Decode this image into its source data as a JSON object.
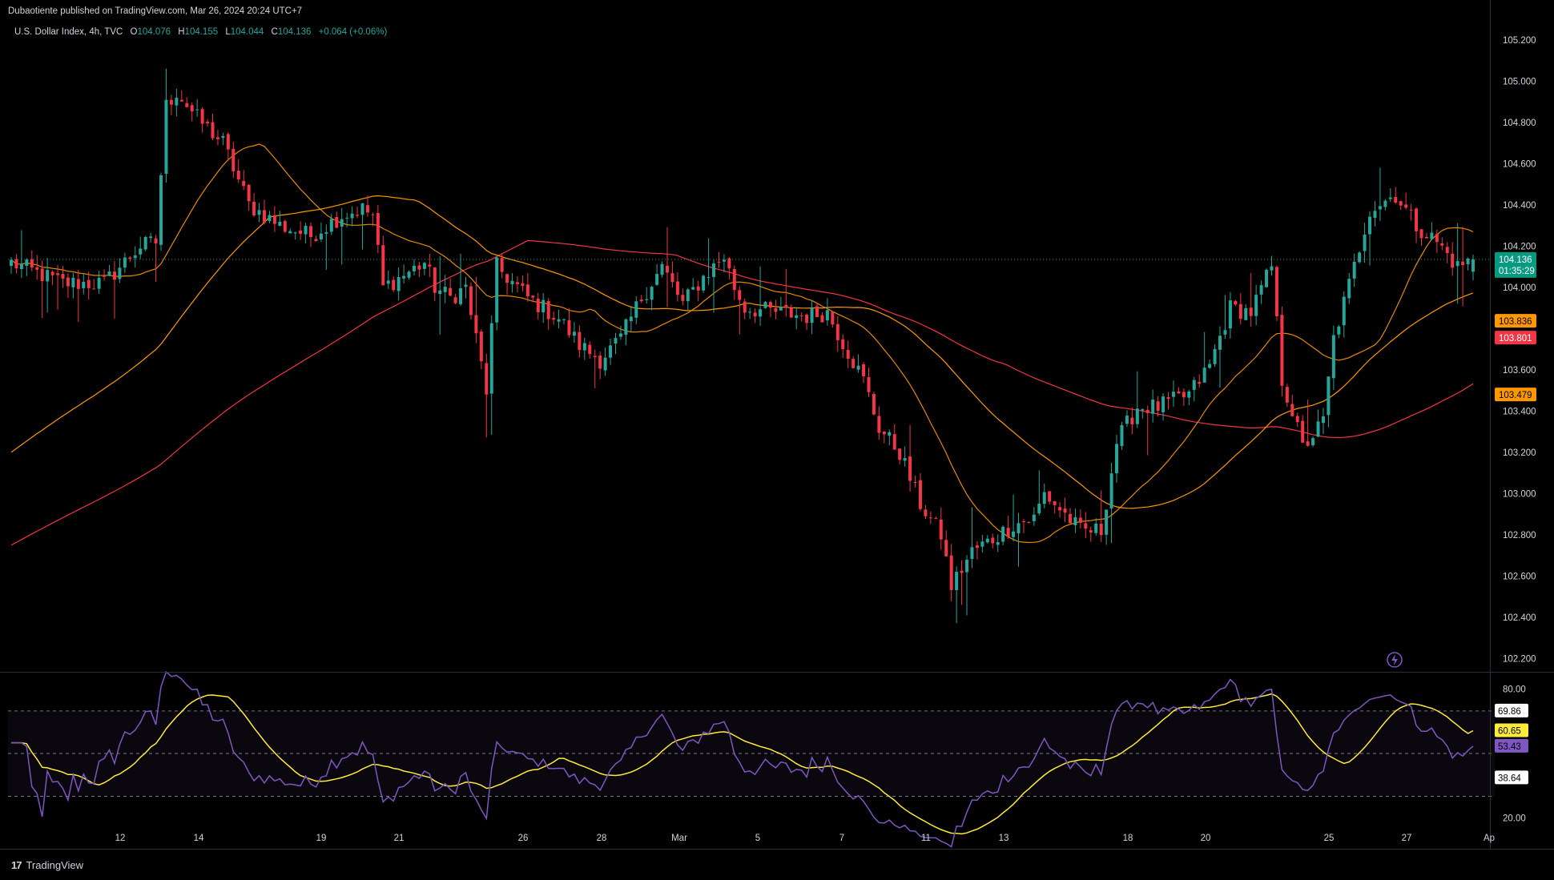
{
  "header": {
    "publisher": "Dubaotiente published on TradingView.com, Mar 26, 2024 20:24 UTC+7"
  },
  "legend": {
    "symbol": "U.S. Dollar Index, 4h, TVC",
    "open_label": "O",
    "open": "104.076",
    "high_label": "H",
    "high": "104.155",
    "low_label": "L",
    "low": "104.044",
    "close_label": "C",
    "close": "104.136",
    "change": "+0.064 (+0.06%)"
  },
  "footer": {
    "brand": "TradingView"
  },
  "colors": {
    "up": "#26a69a",
    "down": "#f23645",
    "ma_fast": "#ff9800",
    "ma_mid": "#ff9800",
    "ma_slow": "#f23645",
    "rsi": "#7e57c2",
    "rsi_ma": "#ffeb3b",
    "price_tag": "#089981"
  },
  "chart_data": [
    {
      "type": "candlestick",
      "symbol": "U.S. Dollar Index",
      "timeframe": "4h",
      "x_ticks": [
        "12",
        "14",
        "19",
        "21",
        "26",
        "28",
        "Mar",
        "5",
        "7",
        "11",
        "13",
        "18",
        "20",
        "25",
        "27",
        "Ap"
      ],
      "y_ticks": [
        "105.200",
        "105.000",
        "104.800",
        "104.600",
        "104.400",
        "104.200",
        "104.000",
        "103.600",
        "103.400",
        "103.200",
        "103.000",
        "102.800",
        "102.600",
        "102.400",
        "102.200"
      ],
      "ylim": [
        102.14,
        105.3
      ],
      "last_price": {
        "value": 104.136,
        "label": "104.136",
        "countdown": "01:35:29"
      },
      "ma_labels": [
        {
          "name": "MA fast",
          "value": 103.836,
          "label": "103.836",
          "color": "#ff9800"
        },
        {
          "name": "MA slow",
          "value": 103.801,
          "label": "103.801",
          "color": "#f23645"
        },
        {
          "name": "MA mid",
          "value": 103.479,
          "label": "103.479",
          "color": "#ff9800"
        }
      ],
      "ohlc_path_anchors": [
        [
          0,
          104.12
        ],
        [
          10,
          104.02
        ],
        [
          18,
          104.02
        ],
        [
          23,
          104.15
        ],
        [
          25,
          104.2
        ],
        [
          28,
          104.22
        ],
        [
          30,
          104.88
        ],
        [
          32,
          104.95
        ],
        [
          36,
          104.82
        ],
        [
          41,
          104.7
        ],
        [
          46,
          104.4
        ],
        [
          52,
          104.3
        ],
        [
          58,
          104.25
        ],
        [
          64,
          104.35
        ],
        [
          68,
          104.38
        ],
        [
          70,
          104.35
        ],
        [
          72,
          104.0
        ],
        [
          76,
          104.06
        ],
        [
          80,
          104.12
        ],
        [
          82,
          104.0
        ],
        [
          85,
          103.95
        ],
        [
          88,
          104.0
        ],
        [
          92,
          103.5
        ],
        [
          94,
          104.1
        ],
        [
          100,
          103.95
        ],
        [
          106,
          103.85
        ],
        [
          110,
          103.72
        ],
        [
          114,
          103.65
        ],
        [
          118,
          103.75
        ],
        [
          122,
          103.95
        ],
        [
          126,
          104.1
        ],
        [
          130,
          103.92
        ],
        [
          134,
          104.05
        ],
        [
          138,
          104.15
        ],
        [
          140,
          104.0
        ],
        [
          142,
          103.9
        ],
        [
          148,
          103.88
        ],
        [
          154,
          103.86
        ],
        [
          158,
          103.88
        ],
        [
          160,
          103.78
        ],
        [
          165,
          103.55
        ],
        [
          168,
          103.32
        ],
        [
          172,
          103.2
        ],
        [
          176,
          102.95
        ],
        [
          180,
          102.8
        ],
        [
          182,
          102.55
        ],
        [
          186,
          102.72
        ],
        [
          190,
          102.78
        ],
        [
          194,
          102.85
        ],
        [
          198,
          102.88
        ],
        [
          200,
          103.0
        ],
        [
          204,
          102.9
        ],
        [
          207,
          102.82
        ],
        [
          211,
          102.82
        ],
        [
          214,
          103.25
        ],
        [
          218,
          103.42
        ],
        [
          222,
          103.42
        ],
        [
          228,
          103.48
        ],
        [
          232,
          103.62
        ],
        [
          236,
          103.9
        ],
        [
          240,
          103.88
        ],
        [
          244,
          104.1
        ],
        [
          246,
          103.55
        ],
        [
          248,
          103.4
        ],
        [
          250,
          103.22
        ],
        [
          254,
          103.35
        ],
        [
          256,
          103.75
        ],
        [
          260,
          104.1
        ],
        [
          263,
          104.38
        ],
        [
          268,
          104.45
        ],
        [
          272,
          104.3
        ],
        [
          276,
          104.22
        ],
        [
          280,
          104.1
        ],
        [
          283,
          104.14
        ]
      ]
    },
    {
      "type": "line",
      "name": "RSI",
      "y_ticks": [
        "80.00",
        "20.00"
      ],
      "ylim": [
        13,
        87
      ],
      "bands": [
        69.86,
        50,
        30
      ],
      "value_labels": [
        {
          "label": "69.86",
          "value": 69.86
        },
        {
          "label": "60.65",
          "value": 60.65,
          "color": "#ffeb3b"
        },
        {
          "label": "53.43",
          "value": 53.43,
          "color": "#7e57c2"
        },
        {
          "label": "38.64",
          "value": 38.64
        }
      ]
    }
  ]
}
